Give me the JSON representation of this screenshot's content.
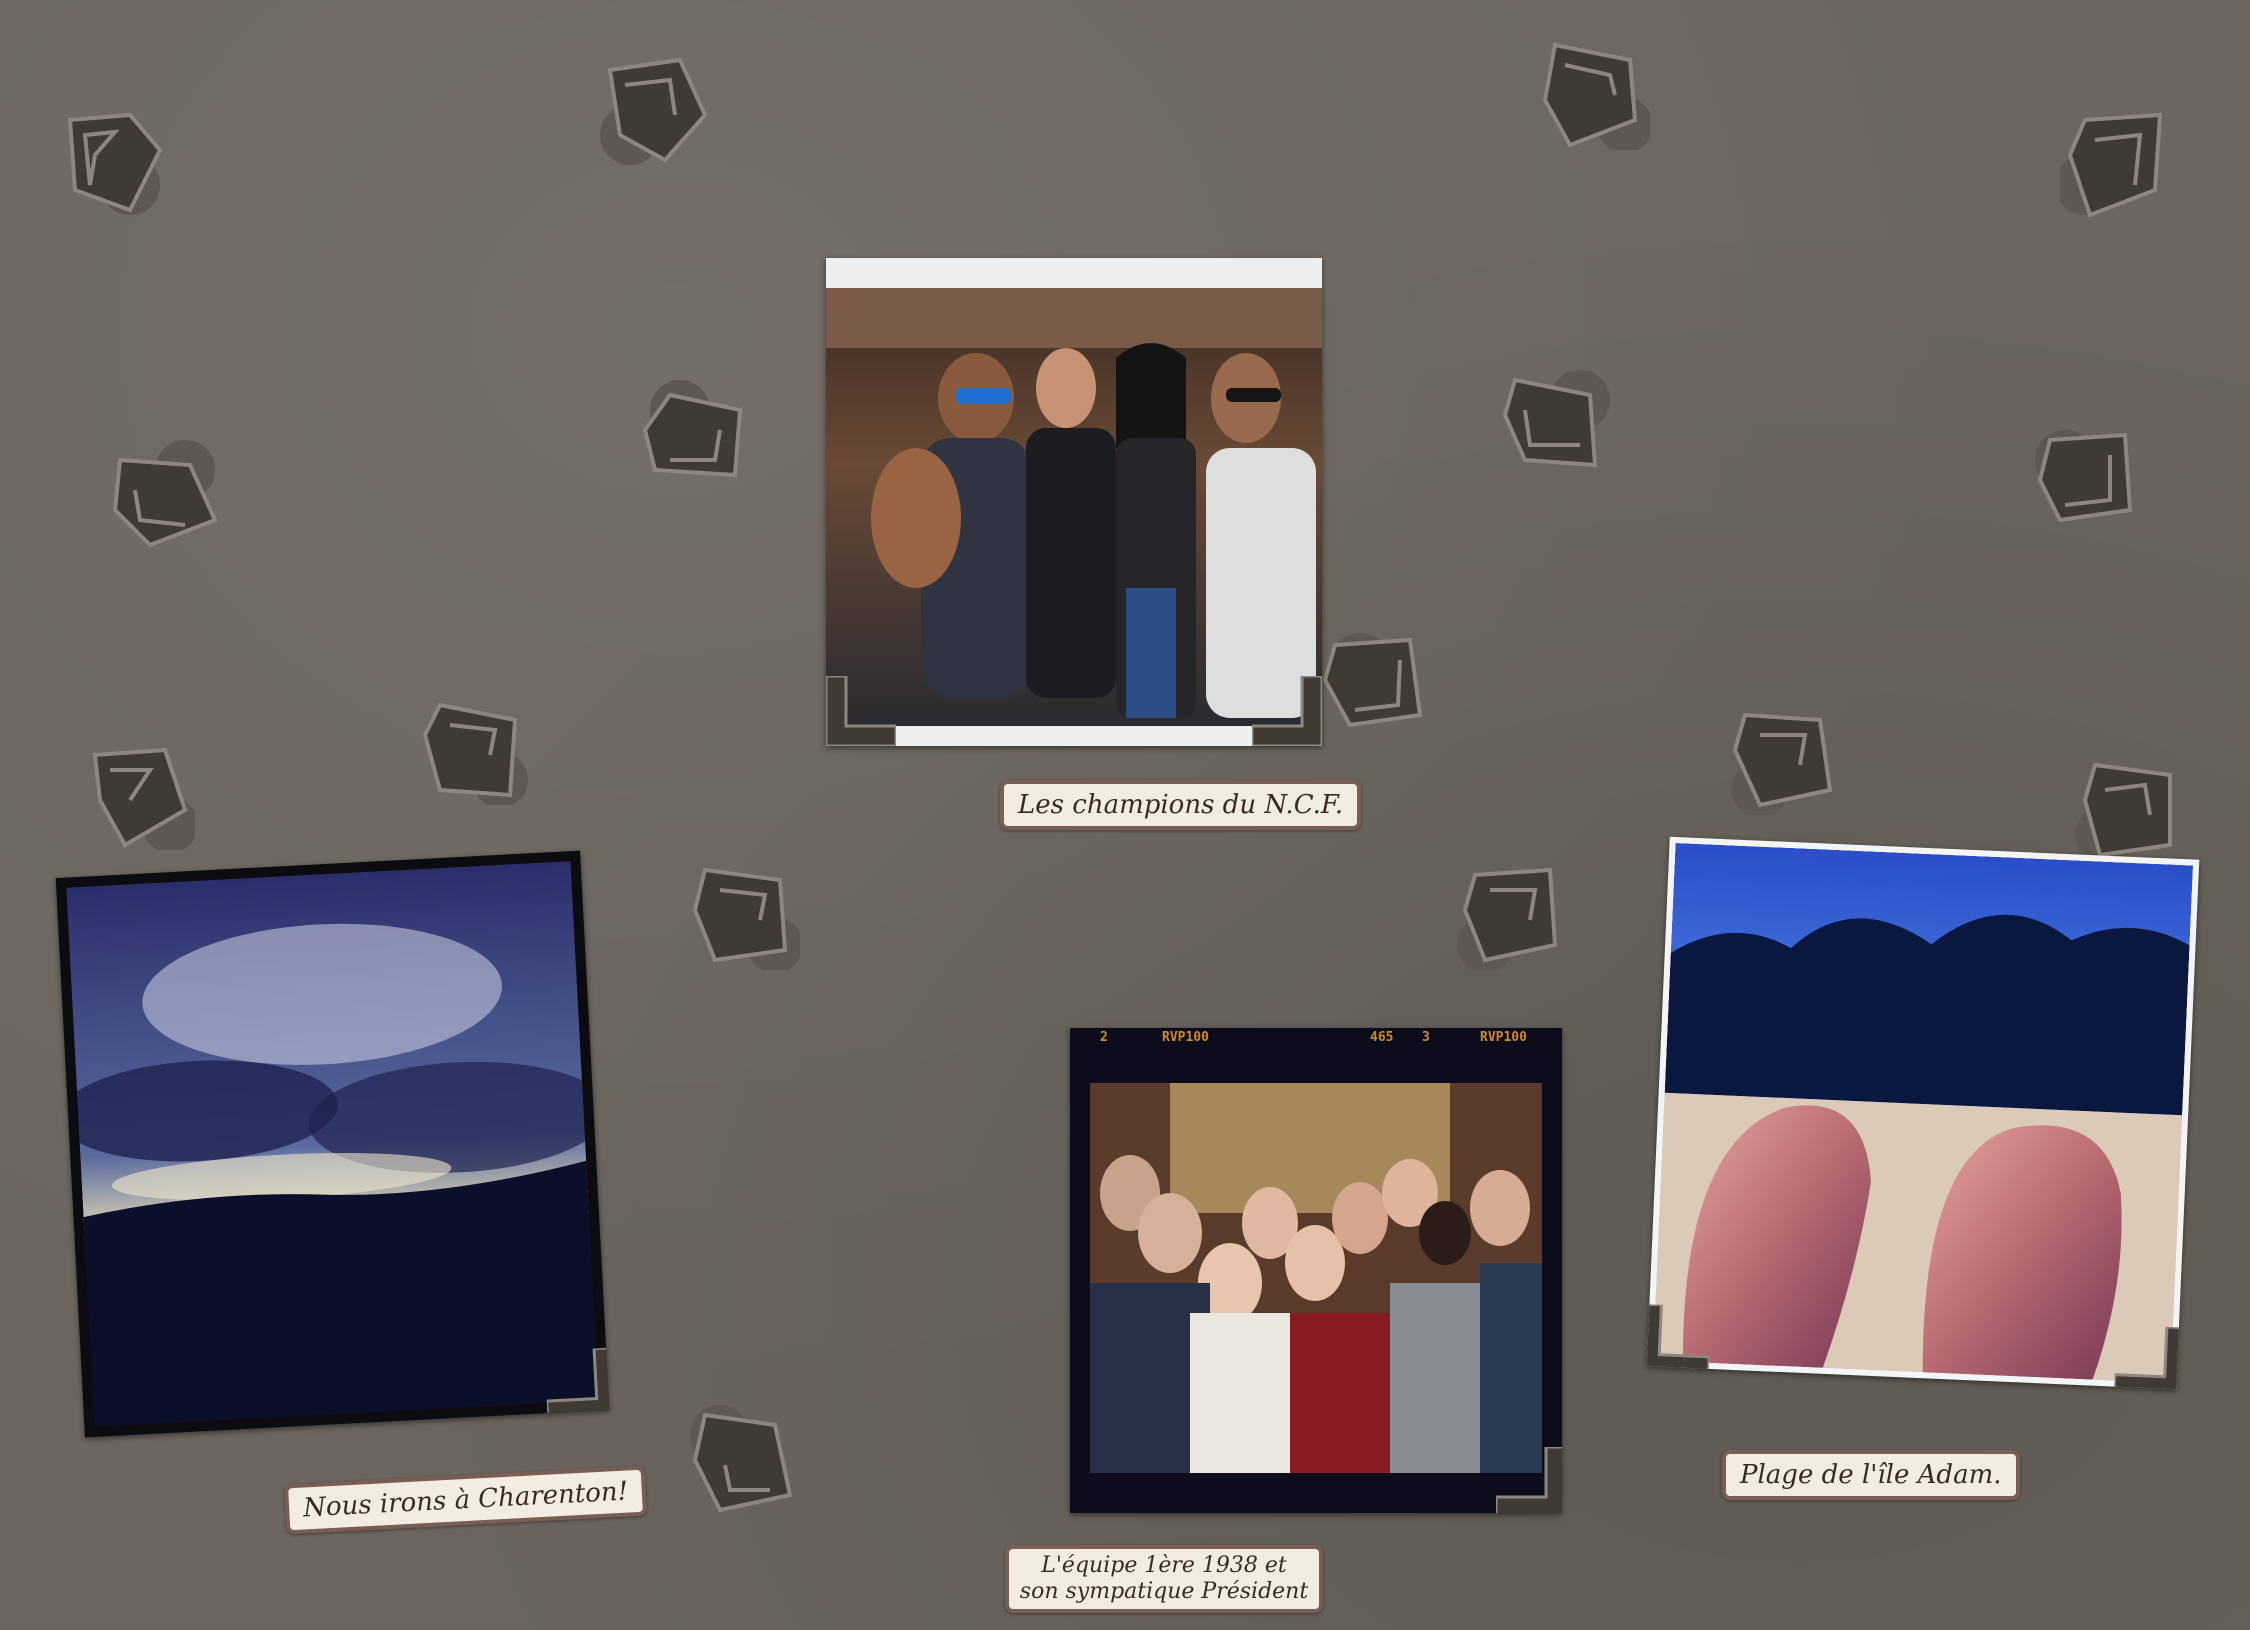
{
  "album": {
    "photos": [
      {
        "id": "champions",
        "subject": "group-portrait"
      },
      {
        "id": "charenton",
        "subject": "cloudy-sky"
      },
      {
        "id": "equipe",
        "subject": "team-group"
      },
      {
        "id": "plage",
        "subject": "beach-legs"
      }
    ],
    "captions": {
      "champions": "Les champions du N.C.F.",
      "charenton": "Nous irons à Charenton!",
      "equipe_line1": "L'équipe 1ère 1938 et",
      "equipe_line2": "son sympatique Président",
      "plage": "Plage de l'île Adam."
    },
    "film_strip": {
      "frame_left_num": "2",
      "frame_left_label": "RVP100",
      "frame_mid_num": "465",
      "frame_right_num": "3",
      "frame_right_label": "RVP100"
    },
    "colors": {
      "paper": "#6c665f",
      "corner_dark": "#3f3a33",
      "corner_light": "#8d877f",
      "caption_bg": "#f3ece2",
      "caption_border": "#7a5d54"
    }
  }
}
